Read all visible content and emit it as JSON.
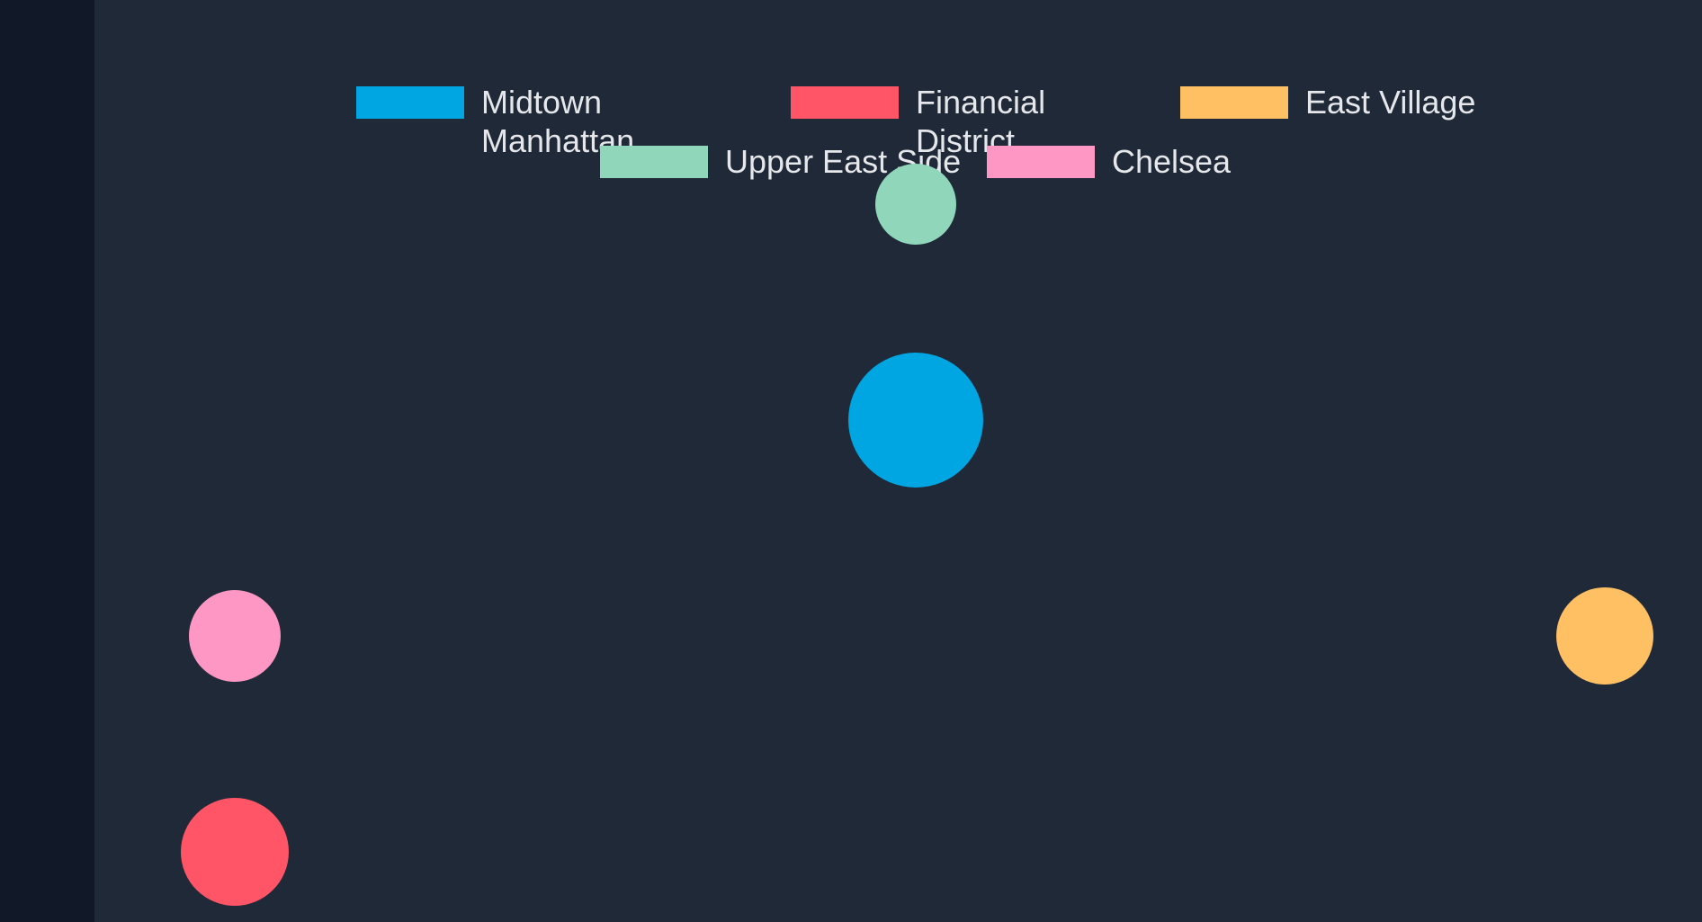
{
  "chart_data": {
    "type": "bubble",
    "series": [
      {
        "name": "Midtown Manhattan",
        "name_lines": [
          "Midtown",
          "Manhattan"
        ],
        "color": "#00a6e2",
        "x": 0,
        "y": 0,
        "r": 75
      },
      {
        "name": "Financial District",
        "name_lines": [
          "Financial",
          "District"
        ],
        "color": "#ff5567",
        "x": -757,
        "y": -480,
        "r": 60
      },
      {
        "name": "East Village",
        "name_lines": [
          "East Village"
        ],
        "color": "#ffbf63",
        "x": 766,
        "y": -240,
        "r": 54
      },
      {
        "name": "Upper East Side",
        "name_lines": [
          "Upper East Side"
        ],
        "color": "#8fd6bb",
        "x": 0,
        "y": 240,
        "r": 45
      },
      {
        "name": "Chelsea",
        "name_lines": [
          "Chelsea"
        ],
        "color": "#ff97c4",
        "x": -757,
        "y": -240,
        "r": 51
      }
    ],
    "legend_position": "top",
    "axes_visible": false,
    "grid": false
  }
}
